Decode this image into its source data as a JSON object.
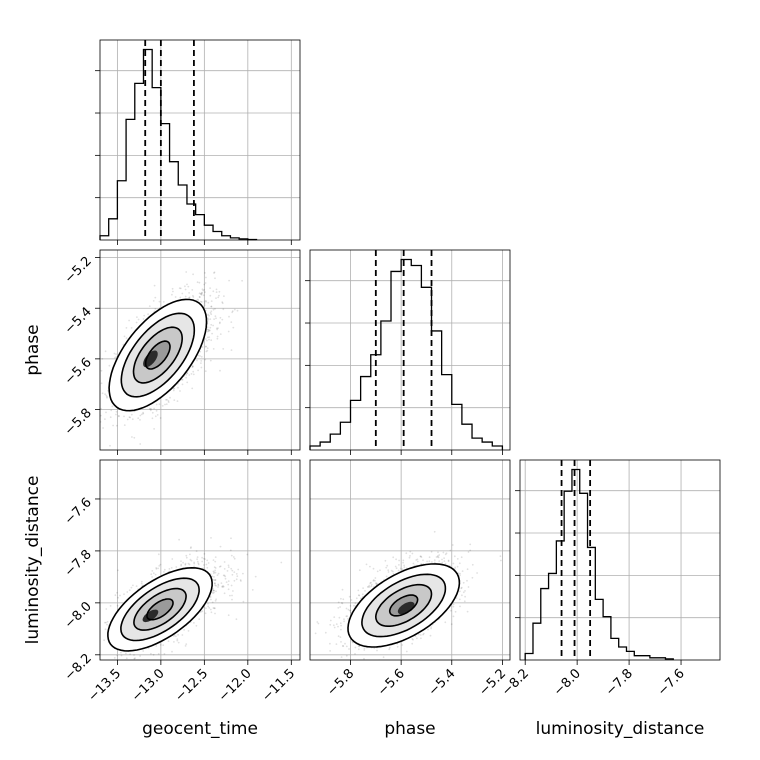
{
  "chart_data": {
    "type": "corner",
    "parameters": [
      "geocent_time",
      "phase",
      "luminosity_distance"
    ],
    "grid": true,
    "axes": {
      "geocent_time": {
        "range": [
          -13.7,
          -11.4
        ],
        "ticks": [
          -13.5,
          -13.0,
          -12.5,
          -12.0,
          -11.5
        ],
        "tick_labels": [
          "−13.5",
          "−13.0",
          "−12.5",
          "−12.0",
          "−11.5"
        ],
        "label": "geocent_time"
      },
      "phase": {
        "range": [
          -5.96,
          -5.17
        ],
        "ticks": [
          -5.8,
          -5.6,
          -5.4,
          -5.2
        ],
        "tick_labels": [
          "−5.8",
          "−5.6",
          "−5.4",
          "−5.2"
        ],
        "label": "phase"
      },
      "luminosity_distance": {
        "range": [
          -8.22,
          -7.45
        ],
        "ticks": [
          -8.2,
          -8.0,
          -7.8,
          -7.6
        ],
        "tick_labels": [
          "−8.2",
          "−8.0",
          "−7.8",
          "−7.6"
        ],
        "label": "luminosity_distance"
      }
    },
    "marginals": [
      {
        "param": "geocent_time",
        "bin_edges": [
          -13.7,
          -13.6,
          -13.5,
          -13.4,
          -13.3,
          -13.2,
          -13.1,
          -13.0,
          -12.9,
          -12.8,
          -12.7,
          -12.6,
          -12.5,
          -12.4,
          -12.3,
          -12.2,
          -12.1,
          -12.0,
          -11.9
        ],
        "counts": [
          2,
          10,
          28,
          57,
          74,
          90,
          72,
          55,
          37,
          26,
          17,
          12,
          7,
          4,
          2,
          1,
          0.5,
          0.2
        ],
        "quantiles": [
          -13.18,
          -13.0,
          -12.62
        ]
      },
      {
        "param": "phase",
        "bin_edges": [
          -5.96,
          -5.92,
          -5.88,
          -5.84,
          -5.8,
          -5.76,
          -5.72,
          -5.68,
          -5.64,
          -5.6,
          -5.56,
          -5.52,
          -5.48,
          -5.44,
          -5.4,
          -5.36,
          -5.32,
          -5.28,
          -5.24,
          -5.2
        ],
        "counts": [
          2,
          4,
          8,
          14,
          25,
          37,
          48,
          65,
          90,
          96,
          93,
          82,
          60,
          38,
          23,
          13,
          6,
          4,
          2
        ],
        "quantiles": [
          -5.7,
          -5.59,
          -5.48
        ]
      },
      {
        "param": "luminosity_distance",
        "bin_edges": [
          -8.2,
          -8.17,
          -8.14,
          -8.11,
          -8.08,
          -8.05,
          -8.02,
          -7.99,
          -7.96,
          -7.93,
          -7.9,
          -7.87,
          -7.84,
          -7.81,
          -7.78,
          -7.75,
          -7.72,
          -7.69,
          -7.66,
          -7.63
        ],
        "counts": [
          3,
          17,
          33,
          40,
          55,
          78,
          88,
          77,
          52,
          28,
          20,
          10,
          6,
          4,
          2,
          2,
          1,
          1,
          0.5
        ],
        "quantiles": [
          -8.06,
          -8.01,
          -7.95
        ]
      }
    ],
    "joint": [
      {
        "x": "geocent_time",
        "y": "phase",
        "mean": [
          -12.95,
          -5.57
        ],
        "sd": [
          0.28,
          0.11
        ],
        "rho": 0.6,
        "peak": [
          -13.12,
          -5.6
        ]
      },
      {
        "x": "geocent_time",
        "y": "luminosity_distance",
        "mean": [
          -12.9,
          -8.0
        ],
        "sd": [
          0.3,
          0.08
        ],
        "rho": 0.62,
        "peak": [
          -13.12,
          -8.05
        ]
      },
      {
        "x": "phase",
        "y": "luminosity_distance",
        "mean": [
          -5.6,
          -8.0
        ],
        "sd": [
          0.11,
          0.08
        ],
        "rho": 0.55,
        "peak": [
          -5.58,
          -8.02
        ]
      }
    ],
    "contour_levels_sigma": [
      0.5,
      1.0,
      1.5,
      2.0
    ]
  }
}
